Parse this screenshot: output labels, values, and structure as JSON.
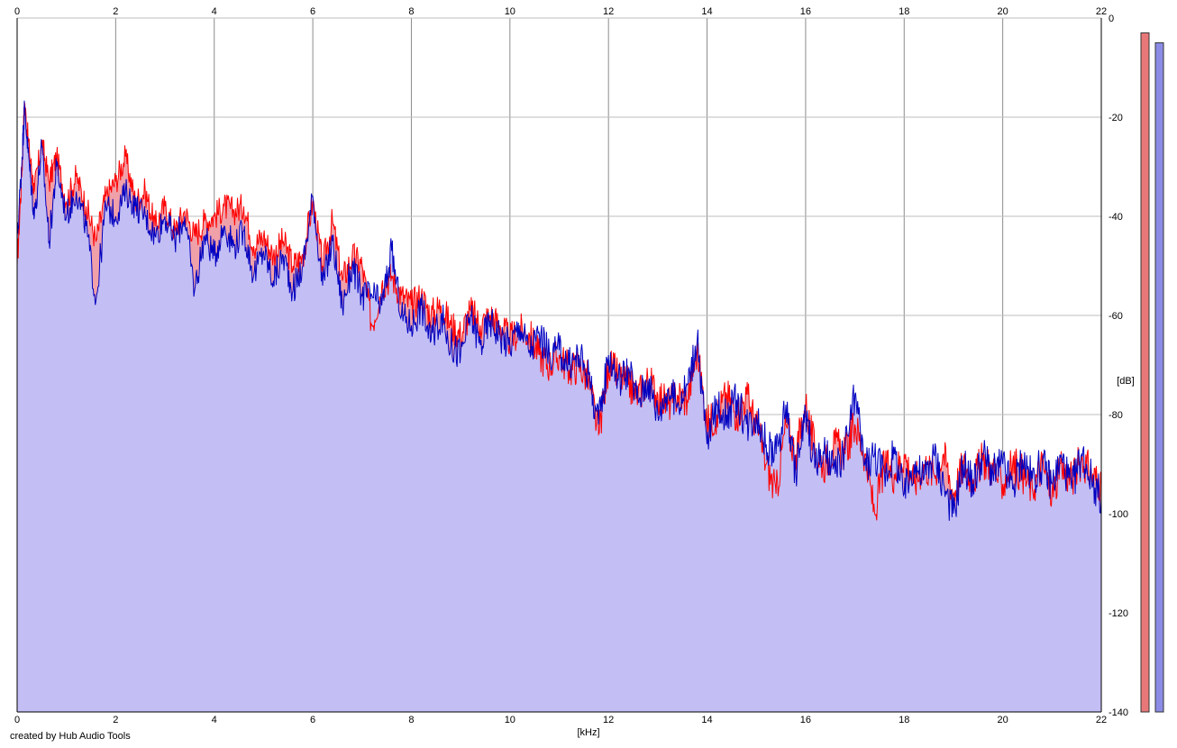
{
  "chart_data": {
    "type": "area",
    "xlabel": "[kHz]",
    "ylabel": "[dB]",
    "xlim": [
      0,
      22
    ],
    "ylim": [
      -140,
      0
    ],
    "x_ticks": [
      "0",
      "2",
      "4",
      "6",
      "8",
      "10",
      "12",
      "14",
      "16",
      "18",
      "20",
      "22"
    ],
    "y_ticks": [
      "0",
      "-20",
      "-40",
      "-60",
      "-80",
      "-100",
      "-120",
      "-140"
    ],
    "grid": true,
    "series": [
      {
        "color": "#ff0000",
        "fill": "#f0a0a8",
        "points": [
          [
            0,
            -50
          ],
          [
            0.1,
            -30
          ],
          [
            0.15,
            -17
          ],
          [
            0.25,
            -27
          ],
          [
            0.35,
            -35
          ],
          [
            0.5,
            -25
          ],
          [
            0.65,
            -33
          ],
          [
            0.8,
            -28
          ],
          [
            1.0,
            -37
          ],
          [
            1.2,
            -32
          ],
          [
            1.4,
            -38
          ],
          [
            1.6,
            -45
          ],
          [
            1.8,
            -36
          ],
          [
            2.0,
            -33
          ],
          [
            2.2,
            -28
          ],
          [
            2.4,
            -37
          ],
          [
            2.6,
            -35
          ],
          [
            2.8,
            -42
          ],
          [
            3.0,
            -38
          ],
          [
            3.2,
            -43
          ],
          [
            3.4,
            -39
          ],
          [
            3.6,
            -44
          ],
          [
            3.8,
            -41
          ],
          [
            4.0,
            -40
          ],
          [
            4.2,
            -38
          ],
          [
            4.4,
            -39
          ],
          [
            4.6,
            -38
          ],
          [
            4.8,
            -46
          ],
          [
            5.0,
            -44
          ],
          [
            5.2,
            -48
          ],
          [
            5.4,
            -45
          ],
          [
            5.6,
            -50
          ],
          [
            5.8,
            -48
          ],
          [
            6.0,
            -37
          ],
          [
            6.2,
            -50
          ],
          [
            6.4,
            -41
          ],
          [
            6.6,
            -53
          ],
          [
            6.8,
            -48
          ],
          [
            7.0,
            -50
          ],
          [
            7.2,
            -62
          ],
          [
            7.4,
            -54
          ],
          [
            7.6,
            -52
          ],
          [
            7.8,
            -56
          ],
          [
            8.0,
            -58
          ],
          [
            8.2,
            -56
          ],
          [
            8.4,
            -60
          ],
          [
            8.6,
            -58
          ],
          [
            8.8,
            -62
          ],
          [
            9.0,
            -64
          ],
          [
            9.2,
            -59
          ],
          [
            9.4,
            -62
          ],
          [
            9.6,
            -60
          ],
          [
            9.8,
            -62
          ],
          [
            10.0,
            -65
          ],
          [
            10.2,
            -63
          ],
          [
            10.4,
            -64
          ],
          [
            10.6,
            -68
          ],
          [
            10.8,
            -70
          ],
          [
            11.0,
            -68
          ],
          [
            11.2,
            -71
          ],
          [
            11.4,
            -70
          ],
          [
            11.6,
            -73
          ],
          [
            11.8,
            -84
          ],
          [
            12.0,
            -70
          ],
          [
            12.2,
            -72
          ],
          [
            12.4,
            -74
          ],
          [
            12.6,
            -76
          ],
          [
            12.8,
            -73
          ],
          [
            13.0,
            -76
          ],
          [
            13.2,
            -78
          ],
          [
            13.4,
            -76
          ],
          [
            13.6,
            -77
          ],
          [
            13.8,
            -67
          ],
          [
            14.0,
            -82
          ],
          [
            14.2,
            -80
          ],
          [
            14.4,
            -76
          ],
          [
            14.6,
            -80
          ],
          [
            14.8,
            -76
          ],
          [
            15.0,
            -82
          ],
          [
            15.2,
            -90
          ],
          [
            15.4,
            -96
          ],
          [
            15.6,
            -82
          ],
          [
            15.8,
            -88
          ],
          [
            16.0,
            -78
          ],
          [
            16.2,
            -88
          ],
          [
            16.4,
            -90
          ],
          [
            16.6,
            -86
          ],
          [
            16.8,
            -88
          ],
          [
            17.0,
            -82
          ],
          [
            17.2,
            -88
          ],
          [
            17.4,
            -100
          ],
          [
            17.6,
            -90
          ],
          [
            17.8,
            -92
          ],
          [
            18.0,
            -88
          ],
          [
            18.2,
            -94
          ],
          [
            18.4,
            -90
          ],
          [
            18.6,
            -92
          ],
          [
            18.8,
            -88
          ],
          [
            19.0,
            -96
          ],
          [
            19.2,
            -90
          ],
          [
            19.4,
            -93
          ],
          [
            19.6,
            -89
          ],
          [
            19.8,
            -91
          ],
          [
            20.0,
            -94
          ],
          [
            20.2,
            -90
          ],
          [
            20.4,
            -92
          ],
          [
            20.6,
            -95
          ],
          [
            20.8,
            -90
          ],
          [
            21.0,
            -96
          ],
          [
            21.2,
            -91
          ],
          [
            21.4,
            -93
          ],
          [
            21.6,
            -89
          ],
          [
            21.8,
            -92
          ],
          [
            22.0,
            -94
          ]
        ]
      },
      {
        "color": "#0000c0",
        "fill": "#c0c0f8",
        "points": [
          [
            0,
            -45
          ],
          [
            0.1,
            -28
          ],
          [
            0.15,
            -18
          ],
          [
            0.25,
            -30
          ],
          [
            0.35,
            -40
          ],
          [
            0.5,
            -26
          ],
          [
            0.65,
            -45
          ],
          [
            0.8,
            -30
          ],
          [
            1.0,
            -40
          ],
          [
            1.2,
            -35
          ],
          [
            1.4,
            -42
          ],
          [
            1.6,
            -57
          ],
          [
            1.8,
            -38
          ],
          [
            2.0,
            -40
          ],
          [
            2.2,
            -35
          ],
          [
            2.4,
            -38
          ],
          [
            2.6,
            -40
          ],
          [
            2.8,
            -44
          ],
          [
            3.0,
            -40
          ],
          [
            3.2,
            -45
          ],
          [
            3.4,
            -40
          ],
          [
            3.6,
            -55
          ],
          [
            3.8,
            -44
          ],
          [
            4.0,
            -48
          ],
          [
            4.2,
            -42
          ],
          [
            4.4,
            -46
          ],
          [
            4.6,
            -43
          ],
          [
            4.8,
            -52
          ],
          [
            5.0,
            -47
          ],
          [
            5.2,
            -53
          ],
          [
            5.4,
            -48
          ],
          [
            5.6,
            -55
          ],
          [
            5.8,
            -50
          ],
          [
            6.0,
            -36
          ],
          [
            6.2,
            -54
          ],
          [
            6.4,
            -45
          ],
          [
            6.6,
            -58
          ],
          [
            6.8,
            -50
          ],
          [
            7.0,
            -56
          ],
          [
            7.2,
            -56
          ],
          [
            7.4,
            -58
          ],
          [
            7.6,
            -47
          ],
          [
            7.8,
            -60
          ],
          [
            8.0,
            -62
          ],
          [
            8.2,
            -58
          ],
          [
            8.4,
            -65
          ],
          [
            8.6,
            -60
          ],
          [
            8.8,
            -66
          ],
          [
            9.0,
            -68
          ],
          [
            9.2,
            -60
          ],
          [
            9.4,
            -66
          ],
          [
            9.6,
            -61
          ],
          [
            9.8,
            -64
          ],
          [
            10.0,
            -66
          ],
          [
            10.2,
            -62
          ],
          [
            10.4,
            -67
          ],
          [
            10.6,
            -64
          ],
          [
            10.8,
            -68
          ],
          [
            11.0,
            -67
          ],
          [
            11.2,
            -70
          ],
          [
            11.4,
            -68
          ],
          [
            11.6,
            -72
          ],
          [
            11.8,
            -82
          ],
          [
            12.0,
            -68
          ],
          [
            12.2,
            -73
          ],
          [
            12.4,
            -71
          ],
          [
            12.6,
            -77
          ],
          [
            12.8,
            -73
          ],
          [
            13.0,
            -80
          ],
          [
            13.2,
            -75
          ],
          [
            13.4,
            -78
          ],
          [
            13.6,
            -74
          ],
          [
            13.8,
            -65
          ],
          [
            14.0,
            -86
          ],
          [
            14.2,
            -78
          ],
          [
            14.4,
            -80
          ],
          [
            14.6,
            -77
          ],
          [
            14.8,
            -82
          ],
          [
            15.0,
            -80
          ],
          [
            15.2,
            -86
          ],
          [
            15.4,
            -88
          ],
          [
            15.6,
            -78
          ],
          [
            15.8,
            -92
          ],
          [
            16.0,
            -80
          ],
          [
            16.2,
            -90
          ],
          [
            16.4,
            -88
          ],
          [
            16.6,
            -92
          ],
          [
            16.8,
            -87
          ],
          [
            17.0,
            -76
          ],
          [
            17.2,
            -90
          ],
          [
            17.4,
            -88
          ],
          [
            17.6,
            -92
          ],
          [
            17.8,
            -88
          ],
          [
            18.0,
            -96
          ],
          [
            18.2,
            -90
          ],
          [
            18.4,
            -93
          ],
          [
            18.6,
            -88
          ],
          [
            18.8,
            -94
          ],
          [
            19.0,
            -100
          ],
          [
            19.2,
            -90
          ],
          [
            19.4,
            -94
          ],
          [
            19.6,
            -88
          ],
          [
            19.8,
            -92
          ],
          [
            20.0,
            -90
          ],
          [
            20.2,
            -95
          ],
          [
            20.4,
            -89
          ],
          [
            20.6,
            -93
          ],
          [
            20.8,
            -90
          ],
          [
            21.0,
            -94
          ],
          [
            21.2,
            -89
          ],
          [
            21.4,
            -95
          ],
          [
            21.6,
            -88
          ],
          [
            21.8,
            -93
          ],
          [
            22.0,
            -97
          ]
        ]
      }
    ],
    "level_meters": [
      {
        "color": "#e87878",
        "level": -3
      },
      {
        "color": "#8c8ce6",
        "level": -5
      }
    ]
  },
  "footer": {
    "credit": "created by Hub Audio Tools"
  }
}
